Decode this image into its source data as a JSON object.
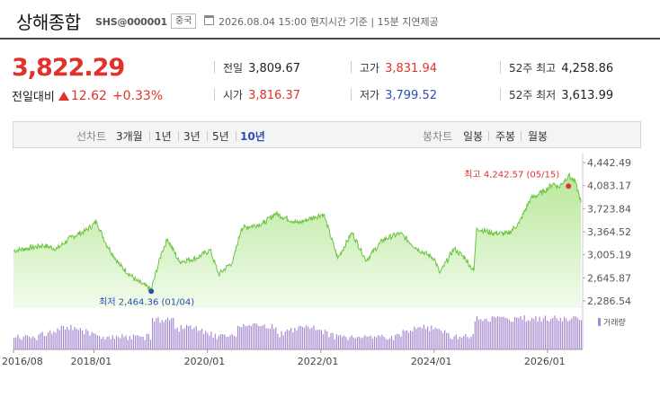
{
  "header": {
    "name": "상해종합",
    "code": "SHS@000001",
    "country": "중국",
    "timestamp": "2026.08.04 15:00 현지시간 기준 | 15분 지연제공"
  },
  "quote": {
    "price": "3,822.29",
    "change_label": "전일대비",
    "change": "12.62",
    "change_pct": "+0.33%",
    "stats": [
      {
        "key": "전일",
        "value": "3,809.67",
        "color": "#222222"
      },
      {
        "key": "고가",
        "value": "3,831.94",
        "color": "#e0322b"
      },
      {
        "key": "52주 최고",
        "value": "4,258.86",
        "color": "#222222"
      },
      {
        "key": "시가",
        "value": "3,816.37",
        "color": "#e0322b"
      },
      {
        "key": "저가",
        "value": "3,799.52",
        "color": "#2a4fb0"
      },
      {
        "key": "52주 최저",
        "value": "3,613.99",
        "color": "#222222"
      }
    ]
  },
  "controls": {
    "line_group": "선차트",
    "line_options": [
      "3개월",
      "1년",
      "3년",
      "5년",
      "10년"
    ],
    "line_selected": "10년",
    "candle_group": "봉차트",
    "candle_options": [
      "일봉",
      "주봉",
      "월봉"
    ]
  },
  "chart_data": {
    "type": "area",
    "x_start": "2016/08",
    "x_end": "2026/08",
    "y_ticks": [
      "4,442.49",
      "4,083.17",
      "3,723.84",
      "3,364.52",
      "3,005.19",
      "2,645.87",
      "2,286.54"
    ],
    "ylim": [
      2286.54,
      4442.49
    ],
    "x_ticks": [
      "2016/08",
      "2018/01",
      "2020/01",
      "2022/01",
      "2024/01",
      "2026/01"
    ],
    "x_tick_years": [
      2016.58,
      2018.0,
      2020.0,
      2022.0,
      2024.0,
      2026.0
    ],
    "series": [
      {
        "t": 2016.58,
        "v": 3070
      },
      {
        "t": 2016.85,
        "v": 3110
      },
      {
        "t": 2017.1,
        "v": 3150
      },
      {
        "t": 2017.35,
        "v": 3100
      },
      {
        "t": 2017.6,
        "v": 3280
      },
      {
        "t": 2017.85,
        "v": 3380
      },
      {
        "t": 2018.05,
        "v": 3520
      },
      {
        "t": 2018.2,
        "v": 3200
      },
      {
        "t": 2018.45,
        "v": 2850
      },
      {
        "t": 2018.75,
        "v": 2600
      },
      {
        "t": 2019.01,
        "v": 2464
      },
      {
        "t": 2019.2,
        "v": 3060
      },
      {
        "t": 2019.3,
        "v": 3250
      },
      {
        "t": 2019.5,
        "v": 2900
      },
      {
        "t": 2019.8,
        "v": 2950
      },
      {
        "t": 2020.05,
        "v": 3080
      },
      {
        "t": 2020.2,
        "v": 2700
      },
      {
        "t": 2020.45,
        "v": 2900
      },
      {
        "t": 2020.6,
        "v": 3420
      },
      {
        "t": 2021.0,
        "v": 3500
      },
      {
        "t": 2021.2,
        "v": 3650
      },
      {
        "t": 2021.6,
        "v": 3500
      },
      {
        "t": 2021.9,
        "v": 3600
      },
      {
        "t": 2022.05,
        "v": 3640
      },
      {
        "t": 2022.3,
        "v": 2950
      },
      {
        "t": 2022.55,
        "v": 3350
      },
      {
        "t": 2022.8,
        "v": 2920
      },
      {
        "t": 2023.1,
        "v": 3240
      },
      {
        "t": 2023.4,
        "v": 3340
      },
      {
        "t": 2023.7,
        "v": 3100
      },
      {
        "t": 2024.0,
        "v": 2950
      },
      {
        "t": 2024.1,
        "v": 2720
      },
      {
        "t": 2024.35,
        "v": 3100
      },
      {
        "t": 2024.55,
        "v": 2950
      },
      {
        "t": 2024.7,
        "v": 2750
      },
      {
        "t": 2024.75,
        "v": 3420
      },
      {
        "t": 2025.0,
        "v": 3350
      },
      {
        "t": 2025.3,
        "v": 3330
      },
      {
        "t": 2025.5,
        "v": 3500
      },
      {
        "t": 2025.7,
        "v": 3880
      },
      {
        "t": 2025.95,
        "v": 4000
      },
      {
        "t": 2026.1,
        "v": 4120
      },
      {
        "t": 2026.2,
        "v": 4060
      },
      {
        "t": 2026.37,
        "v": 4242.57
      },
      {
        "t": 2026.5,
        "v": 4120
      },
      {
        "t": 2026.59,
        "v": 3822.29
      }
    ],
    "high_label": "최고 4,242.57 (05/15)",
    "high_t": 2026.37,
    "high_v": 4242.57,
    "low_label": "최저 2,464.36 (01/04)",
    "low_t": 2019.01,
    "low_v": 2464.36,
    "volume_legend": "거래량",
    "line_color": "#6cc440",
    "volume_color": "#a58ad2",
    "high_color": "#e0322b",
    "low_color": "#2a4fb0"
  }
}
